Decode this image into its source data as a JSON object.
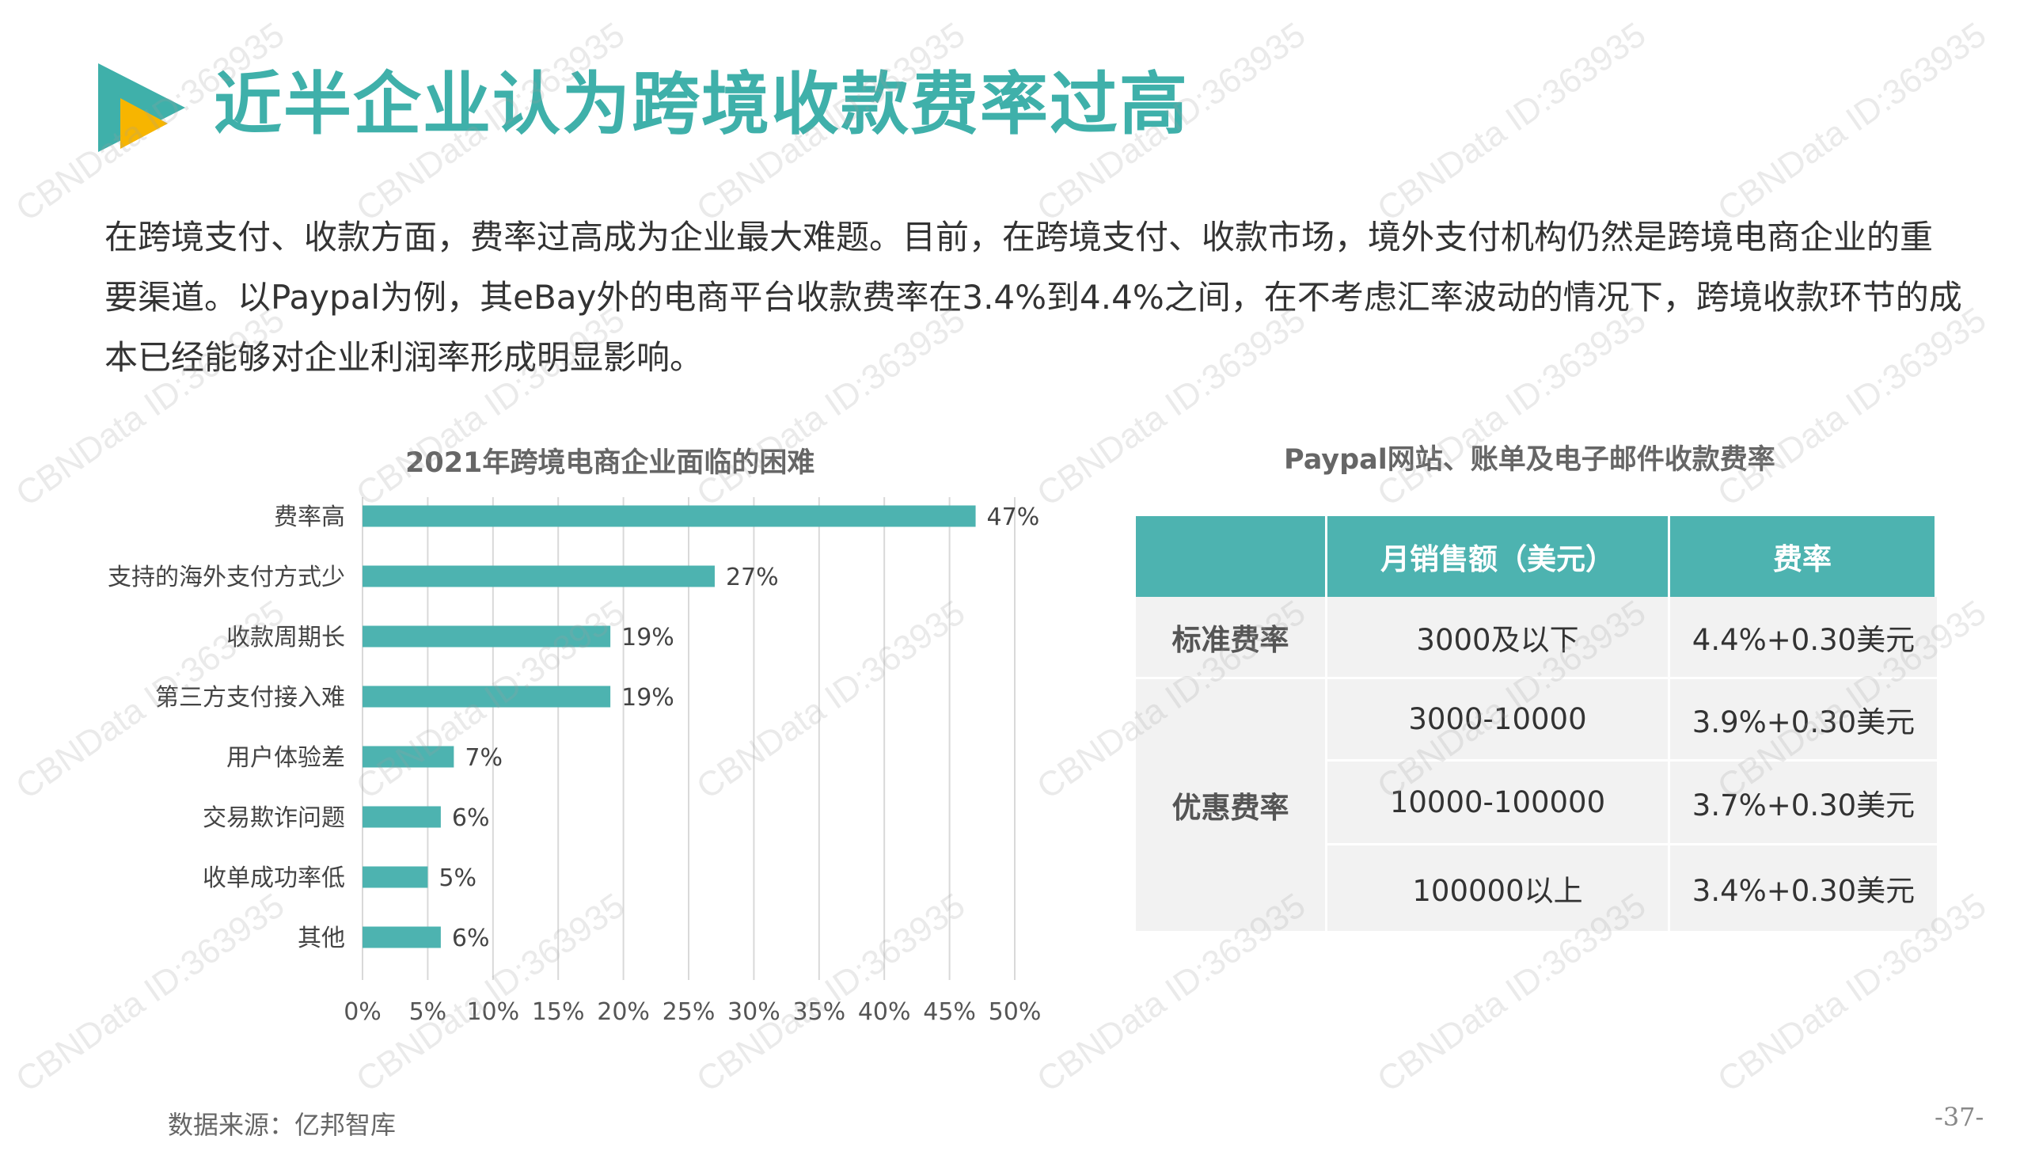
{
  "title": "近半企业认为跨境收款费率过高",
  "intro": [
    "在跨境支付、收款方面，费率过高成为企业最大难题。目前，在跨境支付、收款市场，境外支付机构仍然是跨境电商企业的重",
    "要渠道。以Paypal为例，其eBay外的电商平台收款费率在3.4%到4.4%之间，在不考虑汇率波动的情况下，跨境收款环节的成",
    "本已经能够对企业利润率形成明显影响。"
  ],
  "chart_data": {
    "type": "bar",
    "orientation": "horizontal",
    "title": "2021年跨境电商企业面临的困难",
    "categories": [
      "费率高",
      "支持的海外支付方式少",
      "收款周期长",
      "第三方支付接入难",
      "用户体验差",
      "交易欺诈问题",
      "收单成功率低",
      "其他"
    ],
    "values": [
      47,
      27,
      19,
      19,
      7,
      6,
      5,
      6
    ],
    "value_labels": [
      "47%",
      "27%",
      "19%",
      "19%",
      "7%",
      "6%",
      "5%",
      "6%"
    ],
    "xlim": [
      0,
      50
    ],
    "x_ticks": [
      "0%",
      "5%",
      "10%",
      "15%",
      "20%",
      "25%",
      "30%",
      "35%",
      "40%",
      "45%",
      "50%"
    ],
    "grid": "vertical",
    "bar_color": "#4db3b0"
  },
  "table": {
    "title": "Paypal网站、账单及电子邮件收款费率",
    "headers": [
      "",
      "月销售额（美元）",
      "费率"
    ],
    "group_standard": "标准费率",
    "group_discount": "优惠费率",
    "rows": [
      {
        "sales": "3000及以下",
        "rate": "4.4%+0.30美元"
      },
      {
        "sales": "3000-10000",
        "rate": "3.9%+0.30美元"
      },
      {
        "sales": "10000-100000",
        "rate": "3.7%+0.30美元"
      },
      {
        "sales": "100000以上",
        "rate": "3.4%+0.30美元"
      }
    ],
    "header_color": "#4db3b0"
  },
  "source": "数据来源：亿邦智库",
  "page_number": "-37-",
  "watermark": "CBNData ID:363935",
  "colors": {
    "accent": "#3fb0aa",
    "logo_yellow": "#f7b500"
  }
}
